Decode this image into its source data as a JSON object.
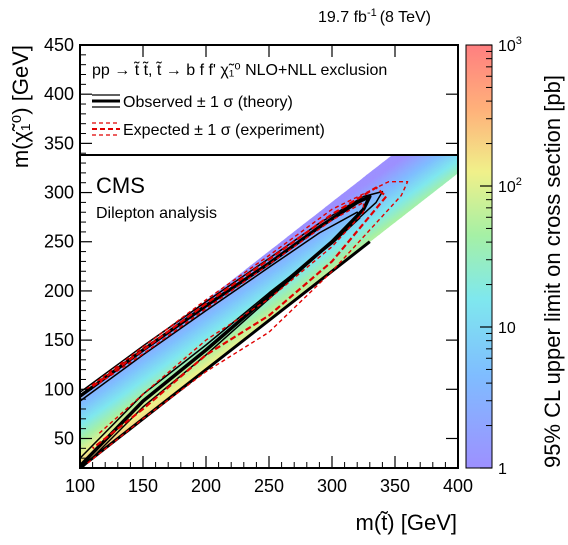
{
  "chart_data": {
    "type": "heatmap",
    "luminosity": "19.7 fb",
    "luminosity_exp": "-1",
    "energy": "(8 TeV)",
    "xlabel": "m(t̃) [GeV]",
    "ylabel": "m(χ̃₁⁰) [GeV]",
    "zlabel": "95% CL upper limit on cross section [pb]",
    "xlim": [
      100,
      400
    ],
    "ylim": [
      20,
      450
    ],
    "zlim": [
      1,
      1000
    ],
    "z_scale": "log",
    "x_ticks": [
      "100",
      "150",
      "200",
      "250",
      "300",
      "350",
      "400"
    ],
    "y_ticks": [
      "50",
      "100",
      "150",
      "200",
      "250",
      "300",
      "350",
      "400",
      "450"
    ],
    "z_ticks": [
      {
        "value": 1,
        "label": "1",
        "sup": ""
      },
      {
        "value": 10,
        "label": "10",
        "sup": ""
      },
      {
        "value": 100,
        "label": "10",
        "sup": "2"
      },
      {
        "value": 1000,
        "label": "10",
        "sup": "3"
      }
    ],
    "experiment": "CMS",
    "analysis": "Dilepton analysis",
    "legend": {
      "header": "pp → t̃ t̃, t̃ → b f f' χ̃₁⁰  NLO+NLL exclusion",
      "observed": "Observed ± 1 σ (theory)",
      "expected": "Expected ± 1 σ (experiment)"
    },
    "band": {
      "dm_min": 10,
      "dm_max": 80,
      "x_min": 100,
      "x_max": 400,
      "limit_pb_at_dm_min": 3,
      "limit_pb_at_dm_max": 300,
      "limit_decrease_per_100gev": 0.3
    },
    "contours": {
      "observed": [
        [
          100,
          93
        ],
        [
          150,
          140
        ],
        [
          200,
          185
        ],
        [
          250,
          228
        ],
        [
          290,
          265
        ],
        [
          320,
          290
        ],
        [
          330,
          296
        ],
        [
          325,
          283
        ],
        [
          300,
          250
        ],
        [
          250,
          195
        ],
        [
          200,
          140
        ],
        [
          150,
          88
        ],
        [
          100,
          22
        ]
      ],
      "observed_plus": [
        [
          100,
          88
        ],
        [
          150,
          135
        ],
        [
          200,
          180
        ],
        [
          250,
          224
        ],
        [
          290,
          259
        ],
        [
          320,
          280
        ],
        [
          322,
          274
        ],
        [
          300,
          248
        ],
        [
          250,
          198
        ],
        [
          200,
          145
        ],
        [
          150,
          95
        ],
        [
          100,
          30
        ]
      ],
      "observed_minus": [
        [
          100,
          97
        ],
        [
          150,
          144
        ],
        [
          200,
          189
        ],
        [
          250,
          233
        ],
        [
          290,
          269
        ],
        [
          325,
          296
        ],
        [
          340,
          301
        ],
        [
          335,
          290
        ],
        [
          305,
          255
        ],
        [
          250,
          192
        ],
        [
          200,
          135
        ],
        [
          150,
          82
        ],
        [
          100,
          18
        ]
      ],
      "expected": [
        [
          110,
          103
        ],
        [
          150,
          140
        ],
        [
          200,
          187
        ],
        [
          250,
          232
        ],
        [
          300,
          278
        ],
        [
          335,
          305
        ],
        [
          343,
          296
        ],
        [
          300,
          230
        ],
        [
          250,
          175
        ],
        [
          200,
          135
        ],
        [
          150,
          80
        ],
        [
          110,
          40
        ]
      ],
      "expected_plus": [
        [
          115,
          106
        ],
        [
          150,
          136
        ],
        [
          200,
          182
        ],
        [
          250,
          227
        ],
        [
          300,
          272
        ],
        [
          325,
          290
        ],
        [
          325,
          280
        ],
        [
          300,
          245
        ],
        [
          250,
          192
        ],
        [
          200,
          150
        ],
        [
          150,
          95
        ],
        [
          115,
          55
        ]
      ],
      "expected_minus": [
        [
          105,
          100
        ],
        [
          150,
          143
        ],
        [
          200,
          191
        ],
        [
          250,
          236
        ],
        [
          300,
          283
        ],
        [
          345,
          311
        ],
        [
          360,
          311
        ],
        [
          355,
          297
        ],
        [
          300,
          220
        ],
        [
          250,
          158
        ],
        [
          200,
          118
        ],
        [
          150,
          70
        ],
        [
          105,
          24
        ]
      ]
    },
    "diagonal_line": [
      [
        100,
        20
      ],
      [
        330,
        250
      ]
    ],
    "grid": false,
    "legend_position": "top"
  }
}
